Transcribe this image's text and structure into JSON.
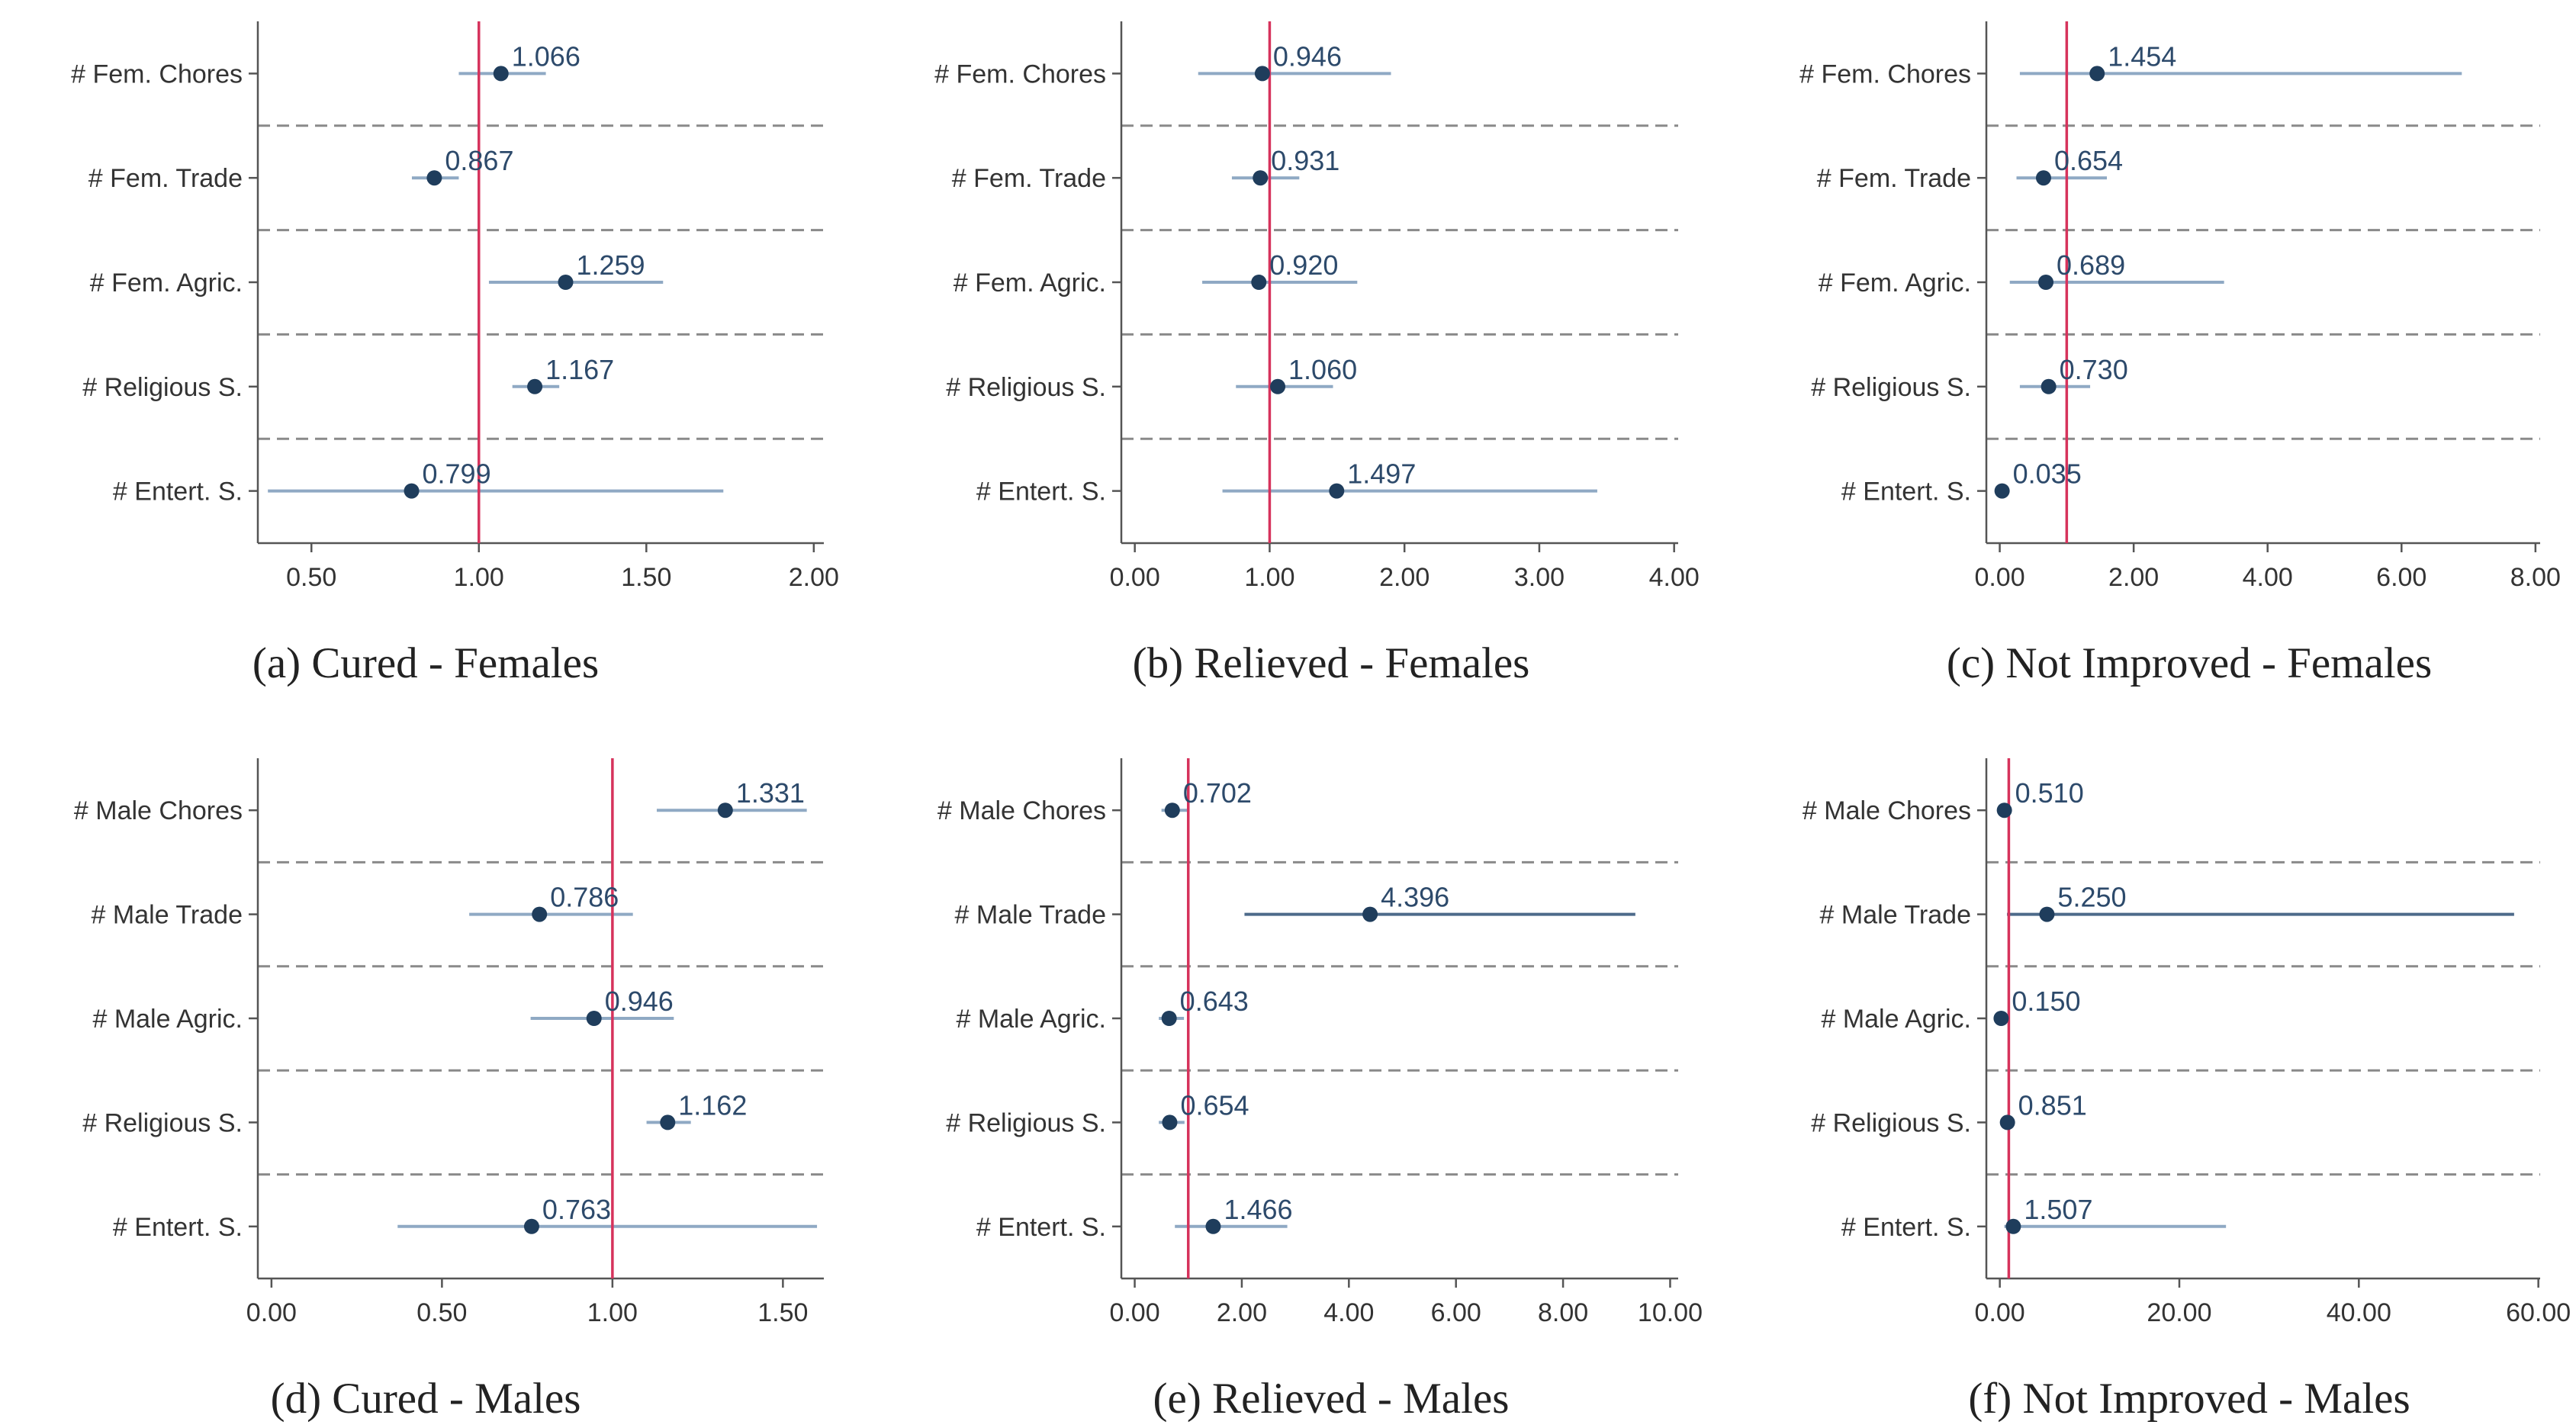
{
  "panel_style": {
    "point_color": "#1f3d5c",
    "ci_color": "#8fa9c4",
    "ci_color_dark": "#4d6a8a",
    "ref_line_color": "#d6335c",
    "separator_color": "#8a8a8a",
    "axis_color": "#555555"
  },
  "chart_data": [
    {
      "type": "scatter",
      "caption": "(a)  Cured  -  Females",
      "categories": [
        "# Fem. Chores",
        "# Fem. Trade",
        "# Fem. Agric.",
        "# Religious S.",
        "# Entert. S."
      ],
      "values": [
        1.066,
        0.867,
        1.259,
        1.167,
        0.799
      ],
      "value_labels": [
        "1.066",
        "0.867",
        "1.259",
        "1.167",
        "0.799"
      ],
      "ci_low": [
        0.94,
        0.8,
        1.03,
        1.1,
        0.37
      ],
      "ci_high": [
        1.2,
        0.94,
        1.55,
        1.24,
        1.73
      ],
      "xlim": [
        0.34,
        2.03
      ],
      "xticks": [
        0.5,
        1.0,
        1.5,
        2.0
      ],
      "xtick_labels": [
        "0.50",
        "1.00",
        "1.50",
        "2.00"
      ],
      "reference_line": 1.0
    },
    {
      "type": "scatter",
      "caption": "(b)  Relieved  -  Females",
      "categories": [
        "# Fem. Chores",
        "# Fem. Trade",
        "# Fem. Agric.",
        "# Religious S.",
        "# Entert. S."
      ],
      "values": [
        0.946,
        0.931,
        0.92,
        1.06,
        1.497
      ],
      "value_labels": [
        "0.946",
        "0.931",
        "0.920",
        "1.060",
        "1.497"
      ],
      "ci_low": [
        0.47,
        0.72,
        0.5,
        0.75,
        0.65
      ],
      "ci_high": [
        1.9,
        1.22,
        1.65,
        1.47,
        3.43
      ],
      "xlim": [
        -0.1,
        4.03
      ],
      "xticks": [
        0,
        1,
        2,
        3,
        4
      ],
      "xtick_labels": [
        "0.00",
        "1.00",
        "2.00",
        "3.00",
        "4.00"
      ],
      "reference_line": 1.0
    },
    {
      "type": "scatter",
      "caption": "(c)  Not Improved  -  Females",
      "categories": [
        "# Fem. Chores",
        "# Fem. Trade",
        "# Fem. Agric.",
        "# Religious S.",
        "# Entert. S."
      ],
      "values": [
        1.454,
        0.654,
        0.689,
        0.73,
        0.035
      ],
      "value_labels": [
        "1.454",
        "0.654",
        "0.689",
        "0.730",
        "0.035"
      ],
      "ci_low": [
        0.3,
        0.25,
        0.15,
        0.3,
        0.0
      ],
      "ci_high": [
        6.9,
        1.6,
        3.35,
        1.35,
        0.1
      ],
      "xlim": [
        -0.2,
        8.07
      ],
      "xticks": [
        0,
        2,
        4,
        6,
        8
      ],
      "xtick_labels": [
        "0.00",
        "2.00",
        "4.00",
        "6.00",
        "8.00"
      ],
      "reference_line": 1.0
    },
    {
      "type": "scatter",
      "caption": "(d)  Cured  -  Males",
      "categories": [
        "# Male Chores",
        "# Male Trade",
        "# Male Agric.",
        "# Religious S.",
        "# Entert. S."
      ],
      "values": [
        1.331,
        0.786,
        0.946,
        1.162,
        0.763
      ],
      "value_labels": [
        "1.331",
        "0.786",
        "0.946",
        "1.162",
        "0.763"
      ],
      "ci_low": [
        1.13,
        0.58,
        0.76,
        1.1,
        0.37
      ],
      "ci_high": [
        1.57,
        1.06,
        1.18,
        1.23,
        1.6
      ],
      "xlim": [
        -0.04,
        1.62
      ],
      "xticks": [
        0,
        0.5,
        1.0,
        1.5
      ],
      "xtick_labels": [
        "0.00",
        "0.50",
        "1.00",
        "1.50"
      ],
      "reference_line": 1.0
    },
    {
      "type": "scatter",
      "caption": "(e)  Relieved  -  Males",
      "categories": [
        "# Male Chores",
        "# Male Trade",
        "# Male Agric.",
        "# Religious S.",
        "# Entert. S."
      ],
      "values": [
        0.702,
        4.396,
        0.643,
        0.654,
        1.466
      ],
      "value_labels": [
        "0.702",
        "4.396",
        "0.643",
        "0.654",
        "1.466"
      ],
      "ci_low": [
        0.5,
        2.05,
        0.45,
        0.45,
        0.75
      ],
      "ci_high": [
        0.99,
        9.35,
        0.92,
        0.93,
        2.85
      ],
      "xlim": [
        -0.25,
        10.15
      ],
      "xticks": [
        0,
        2,
        4,
        6,
        8,
        10
      ],
      "xtick_labels": [
        "0.00",
        "2.00",
        "4.00",
        "6.00",
        "8.00",
        "10.00"
      ],
      "reference_line": 1.0
    },
    {
      "type": "scatter",
      "caption": "(f)  Not Improved  -  Males",
      "categories": [
        "# Male Chores",
        "# Male Trade",
        "# Male Agric.",
        "# Religious S.",
        "# Entert. S."
      ],
      "values": [
        0.51,
        5.25,
        0.15,
        0.851,
        1.507
      ],
      "value_labels": [
        "0.510",
        "5.250",
        "0.150",
        "0.851",
        "1.507"
      ],
      "ci_low": [
        0.1,
        0.8,
        0.0,
        0.4,
        0.5
      ],
      "ci_high": [
        1.0,
        57.3,
        0.5,
        1.2,
        25.2
      ],
      "xlim": [
        -1.5,
        60.2
      ],
      "xticks": [
        0,
        20,
        40,
        60
      ],
      "xtick_labels": [
        "0.00",
        "20.00",
        "40.00",
        "60.00"
      ],
      "reference_line": 1.0
    }
  ]
}
